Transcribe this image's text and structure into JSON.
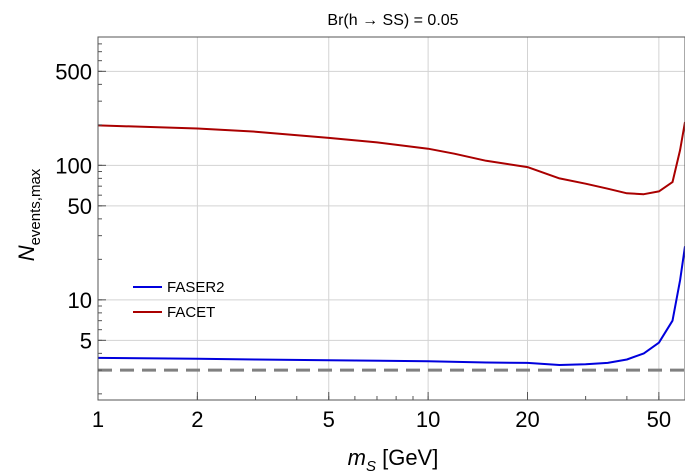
{
  "chart_data": {
    "type": "line",
    "title": "Br(h → SS) = 0.05",
    "xlabel_main": "m",
    "xlabel_sub": "S",
    "xlabel_unit": " [GeV]",
    "ylabel_main": "N",
    "ylabel_sub": "events,max",
    "xscale": "log",
    "yscale": "log",
    "xlim": [
      1,
      60
    ],
    "ylim": [
      1.8,
      900
    ],
    "grid": true,
    "legend_position": "bottom-left",
    "x_ticks": [
      1,
      2,
      5,
      10,
      20,
      50
    ],
    "x_tick_labels": [
      "1",
      "2",
      "5",
      "10",
      "20",
      "50"
    ],
    "y_ticks": [
      5,
      10,
      50,
      100,
      500
    ],
    "y_tick_labels": [
      "5",
      "10",
      "50",
      "100",
      "500"
    ],
    "reference_line": {
      "y": 3,
      "style": "dashed",
      "color": "#808080"
    },
    "series": [
      {
        "name": "FASER2",
        "color": "#0000dd",
        "x": [
          1,
          2,
          3,
          5,
          10,
          15,
          20,
          25,
          30,
          35,
          40,
          45,
          50,
          55,
          58,
          60
        ],
        "y": [
          3.7,
          3.65,
          3.6,
          3.55,
          3.5,
          3.42,
          3.4,
          3.28,
          3.32,
          3.4,
          3.6,
          4.0,
          4.8,
          7.0,
          14.0,
          25.0
        ]
      },
      {
        "name": "FACET",
        "color": "#aa0000",
        "x": [
          1,
          2,
          3,
          5,
          7,
          10,
          12,
          15,
          20,
          25,
          30,
          35,
          40,
          45,
          50,
          55,
          58,
          60
        ],
        "y": [
          198,
          188,
          178,
          160,
          148,
          133,
          122,
          108,
          97,
          80,
          73,
          67,
          62,
          61,
          64,
          75,
          130,
          210
        ]
      }
    ]
  }
}
